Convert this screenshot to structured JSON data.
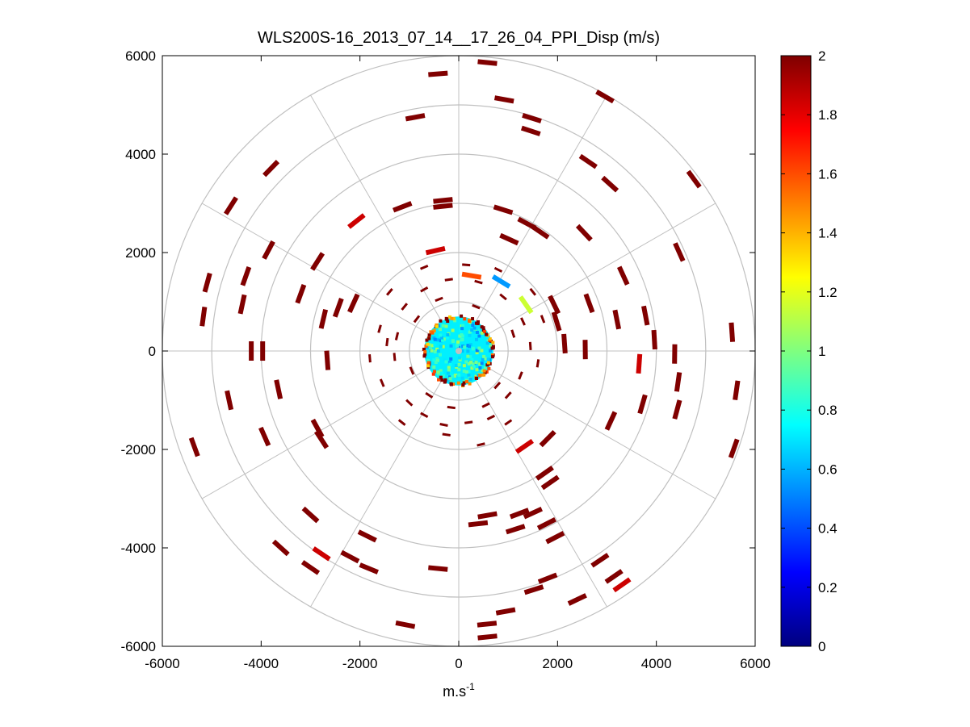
{
  "figure": {
    "title": "WLS200S-16_2013_07_14__17_26_04_PPI_Disp (m/s)",
    "background": "#ffffff"
  },
  "chart_data": {
    "type": "scatter",
    "subtype": "polar-ppi",
    "title": "WLS200S-16_2013_07_14__17_26_04_PPI_Disp (m/s)",
    "xlabel": "m.s",
    "xlabel_sup": "-1",
    "ylabel": "",
    "xlim": [
      -6000,
      6000
    ],
    "ylim": [
      -6000,
      6000
    ],
    "xticks": [
      -6000,
      -4000,
      -2000,
      0,
      2000,
      4000,
      6000
    ],
    "yticks": [
      -6000,
      -4000,
      -2000,
      0,
      2000,
      4000,
      6000
    ],
    "xtick_labels": [
      "-6000",
      "-4000",
      "-2000",
      "0",
      "2000",
      "4000",
      "6000"
    ],
    "ytick_labels": [
      "-6000",
      "-4000",
      "-2000",
      "0",
      "2000",
      "4000",
      "6000"
    ],
    "polar_grid": {
      "rings": [
        1000,
        2000,
        3000,
        4000,
        5000,
        6000
      ],
      "spoke_angles_deg": [
        0,
        30,
        60,
        90,
        120,
        150,
        180,
        210,
        240,
        270,
        300,
        330
      ],
      "color": "#c0c0c0"
    },
    "grid": true,
    "colorbar": {
      "colormap": "jet",
      "position": "right",
      "min": 0,
      "max": 2,
      "ticks": [
        0,
        0.2,
        0.4,
        0.6,
        0.8,
        1,
        1.2,
        1.4,
        1.6,
        1.8,
        2
      ],
      "tick_labels": [
        "0",
        "0.2",
        "0.4",
        "0.6",
        "0.8",
        "1",
        "1.2",
        "1.4",
        "1.6",
        "1.8",
        "2"
      ]
    },
    "core": {
      "radius": 700,
      "value_range": [
        0.5,
        1.1
      ]
    },
    "points": [
      {
        "x": -420,
        "y": 5630,
        "v": 2
      },
      {
        "x": 580,
        "y": 5860,
        "v": 2
      },
      {
        "x": 920,
        "y": 5110,
        "v": 2
      },
      {
        "x": 2960,
        "y": 5170,
        "v": 2
      },
      {
        "x": -880,
        "y": 4750,
        "v": 2
      },
      {
        "x": 1480,
        "y": 4730,
        "v": 2
      },
      {
        "x": 1460,
        "y": 4470,
        "v": 2
      },
      {
        "x": 2620,
        "y": 3850,
        "v": 2
      },
      {
        "x": 3060,
        "y": 3390,
        "v": 2
      },
      {
        "x": 4760,
        "y": 3490,
        "v": 2
      },
      {
        "x": -3800,
        "y": 3710,
        "v": 2
      },
      {
        "x": -4610,
        "y": 2950,
        "v": 2
      },
      {
        "x": -3850,
        "y": 2050,
        "v": 2
      },
      {
        "x": -2860,
        "y": 1820,
        "v": 2
      },
      {
        "x": -4310,
        "y": 1520,
        "v": 2
      },
      {
        "x": -5090,
        "y": 1390,
        "v": 2
      },
      {
        "x": -4380,
        "y": 950,
        "v": 2
      },
      {
        "x": -3200,
        "y": 1160,
        "v": 2
      },
      {
        "x": -5170,
        "y": 700,
        "v": 2
      },
      {
        "x": -2740,
        "y": 650,
        "v": 2
      },
      {
        "x": -2440,
        "y": 880,
        "v": 2
      },
      {
        "x": -2130,
        "y": 970,
        "v": 2
      },
      {
        "x": -4200,
        "y": 0,
        "v": 2
      },
      {
        "x": -3970,
        "y": 0,
        "v": 2
      },
      {
        "x": -2660,
        "y": -190,
        "v": 2
      },
      {
        "x": -4650,
        "y": -1000,
        "v": 2
      },
      {
        "x": -3650,
        "y": -780,
        "v": 2
      },
      {
        "x": -2860,
        "y": -1570,
        "v": 2
      },
      {
        "x": -2780,
        "y": -1800,
        "v": 2
      },
      {
        "x": -3930,
        "y": -1740,
        "v": 2
      },
      {
        "x": -5350,
        "y": -1950,
        "v": 2
      },
      {
        "x": -3000,
        "y": -3330,
        "v": 2
      },
      {
        "x": -3600,
        "y": -4000,
        "v": 2
      },
      {
        "x": -3000,
        "y": -4400,
        "v": 2
      },
      {
        "x": -2780,
        "y": -4120,
        "v": 1.85
      },
      {
        "x": -2200,
        "y": -4180,
        "v": 2
      },
      {
        "x": -1820,
        "y": -4420,
        "v": 2
      },
      {
        "x": -1850,
        "y": -3760,
        "v": 2
      },
      {
        "x": -420,
        "y": -4420,
        "v": 2
      },
      {
        "x": -1080,
        "y": -5560,
        "v": 2
      },
      {
        "x": 570,
        "y": -5550,
        "v": 2
      },
      {
        "x": 580,
        "y": -5810,
        "v": 2
      },
      {
        "x": 950,
        "y": -5290,
        "v": 2
      },
      {
        "x": 1800,
        "y": -4620,
        "v": 2
      },
      {
        "x": 1520,
        "y": -4850,
        "v": 2
      },
      {
        "x": 2400,
        "y": -5050,
        "v": 2
      },
      {
        "x": 2860,
        "y": -4250,
        "v": 2
      },
      {
        "x": 3140,
        "y": -4580,
        "v": 2
      },
      {
        "x": 3300,
        "y": -4750,
        "v": 1.85
      },
      {
        "x": 1950,
        "y": -3790,
        "v": 2
      },
      {
        "x": 1780,
        "y": -3510,
        "v": 2
      },
      {
        "x": 1150,
        "y": -3620,
        "v": 2
      },
      {
        "x": 1500,
        "y": -3290,
        "v": 2
      },
      {
        "x": 1850,
        "y": -2670,
        "v": 2
      },
      {
        "x": 1740,
        "y": -2480,
        "v": 2
      },
      {
        "x": 1230,
        "y": -3300,
        "v": 2
      },
      {
        "x": 580,
        "y": -3340,
        "v": 2
      },
      {
        "x": 390,
        "y": -3510,
        "v": 2
      },
      {
        "x": 1330,
        "y": -1940,
        "v": 1.85
      },
      {
        "x": 1800,
        "y": -1780,
        "v": 2
      },
      {
        "x": 3080,
        "y": -1420,
        "v": 2
      },
      {
        "x": 3720,
        "y": -1080,
        "v": 2
      },
      {
        "x": 4420,
        "y": -1190,
        "v": 2
      },
      {
        "x": 4440,
        "y": -630,
        "v": 2
      },
      {
        "x": 5570,
        "y": -1980,
        "v": 2
      },
      {
        "x": 5620,
        "y": -800,
        "v": 2
      },
      {
        "x": 6070,
        "y": -650,
        "v": 2
      },
      {
        "x": 4370,
        "y": -60,
        "v": 2
      },
      {
        "x": 3650,
        "y": -260,
        "v": 1.85
      },
      {
        "x": 3960,
        "y": 230,
        "v": 2
      },
      {
        "x": 3780,
        "y": 720,
        "v": 2
      },
      {
        "x": 5530,
        "y": 380,
        "v": 2
      },
      {
        "x": 6120,
        "y": 370,
        "v": 2
      },
      {
        "x": 4460,
        "y": 2010,
        "v": 2
      },
      {
        "x": 3330,
        "y": 1530,
        "v": 2
      },
      {
        "x": 3200,
        "y": 640,
        "v": 2
      },
      {
        "x": 2640,
        "y": 970,
        "v": 2
      },
      {
        "x": 2540,
        "y": 2400,
        "v": 2
      },
      {
        "x": 1980,
        "y": 600,
        "v": 2
      },
      {
        "x": 1930,
        "y": 940,
        "v": 2
      },
      {
        "x": 2140,
        "y": 150,
        "v": 2
      },
      {
        "x": 2560,
        "y": 30,
        "v": 2
      },
      {
        "x": 1650,
        "y": 2420,
        "v": 2
      },
      {
        "x": 1380,
        "y": 2590,
        "v": 2
      },
      {
        "x": 900,
        "y": 2870,
        "v": 2
      },
      {
        "x": 1020,
        "y": 2270,
        "v": 2
      },
      {
        "x": -320,
        "y": 3060,
        "v": 2
      },
      {
        "x": -320,
        "y": 2940,
        "v": 2
      },
      {
        "x": -1140,
        "y": 2930,
        "v": 2
      },
      {
        "x": -2070,
        "y": 2640,
        "v": 1.85
      },
      {
        "x": -470,
        "y": 2040,
        "v": 1.85
      },
      {
        "x": 260,
        "y": 1530,
        "v": 1.6
      },
      {
        "x": 1360,
        "y": 940,
        "v": 1.15
      },
      {
        "x": 860,
        "y": 1410,
        "v": 0.55
      }
    ],
    "small_points": [
      {
        "x": -1600,
        "y": 450,
        "v": 2
      },
      {
        "x": -1450,
        "y": 180,
        "v": 2
      },
      {
        "x": -1300,
        "y": -120,
        "v": 2
      },
      {
        "x": -1550,
        "y": -650,
        "v": 2
      },
      {
        "x": -1000,
        "y": -1050,
        "v": 2
      },
      {
        "x": -700,
        "y": -1300,
        "v": 2
      },
      {
        "x": -300,
        "y": -1500,
        "v": 2
      },
      {
        "x": 200,
        "y": -1450,
        "v": 2
      },
      {
        "x": 650,
        "y": -1350,
        "v": 2
      },
      {
        "x": 1000,
        "y": -900,
        "v": 2
      },
      {
        "x": 1250,
        "y": -500,
        "v": 2
      },
      {
        "x": 1450,
        "y": 100,
        "v": 2
      },
      {
        "x": 1300,
        "y": 600,
        "v": 2
      },
      {
        "x": 900,
        "y": 1100,
        "v": 2
      },
      {
        "x": 400,
        "y": 1400,
        "v": 2
      },
      {
        "x": -200,
        "y": 1450,
        "v": 2
      },
      {
        "x": -700,
        "y": 1250,
        "v": 2
      },
      {
        "x": -1100,
        "y": 900,
        "v": 2
      },
      {
        "x": -850,
        "y": 650,
        "v": 2
      },
      {
        "x": 780,
        "y": -700,
        "v": 2
      },
      {
        "x": -600,
        "y": -900,
        "v": 2
      },
      {
        "x": 1600,
        "y": -250,
        "v": 2
      },
      {
        "x": -150,
        "y": -1150,
        "v": 2
      },
      {
        "x": 1100,
        "y": 350,
        "v": 2
      },
      {
        "x": -1250,
        "y": 300,
        "v": 2
      },
      {
        "x": 350,
        "y": 900,
        "v": 2
      },
      {
        "x": -400,
        "y": 1050,
        "v": 2
      },
      {
        "x": 550,
        "y": -1100,
        "v": 2
      },
      {
        "x": -950,
        "y": -400,
        "v": 2
      },
      {
        "x": 1000,
        "y": -1450,
        "v": 2
      },
      {
        "x": 1700,
        "y": 650,
        "v": 2
      },
      {
        "x": -1800,
        "y": -150,
        "v": 2
      },
      {
        "x": 150,
        "y": 1750,
        "v": 2
      },
      {
        "x": -250,
        "y": -1700,
        "v": 2
      },
      {
        "x": 800,
        "y": 1650,
        "v": 2
      },
      {
        "x": -1150,
        "y": -1450,
        "v": 2
      },
      {
        "x": 1500,
        "y": 1200,
        "v": 2
      },
      {
        "x": -1400,
        "y": 1200,
        "v": 2
      },
      {
        "x": 450,
        "y": -1900,
        "v": 2
      },
      {
        "x": -700,
        "y": 1700,
        "v": 2
      }
    ]
  }
}
